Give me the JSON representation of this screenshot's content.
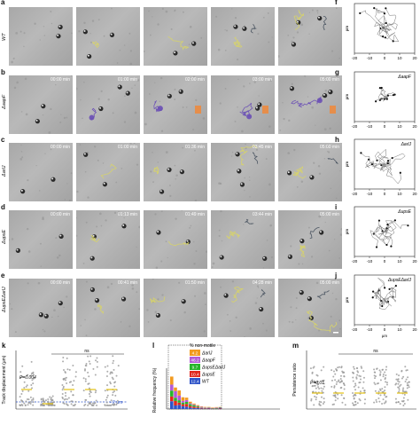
{
  "rows": [
    {
      "letter": "a",
      "plot_letter": "f",
      "label": "WT",
      "times": [
        "",
        "",
        "",
        "",
        ""
      ],
      "plot_title": "",
      "track_color": "#d7d36a"
    },
    {
      "letter": "b",
      "plot_letter": "g",
      "label": "ΔaapF",
      "times": [
        "00:00 min",
        "01:00 min",
        "02:00 min",
        "03:00 min",
        "05:00 min"
      ],
      "plot_title": "ΔaapF",
      "track_color": "#6a4fb5"
    },
    {
      "letter": "c",
      "plot_letter": "h",
      "label": "ΔarlJ",
      "times": [
        "00:00 min",
        "01:00 min",
        "01:36 min",
        "03:45 min",
        "05:00 min"
      ],
      "plot_title": "ΔarlJ",
      "track_color": "#d7d36a"
    },
    {
      "letter": "d",
      "plot_letter": "i",
      "label": "ΔupsE",
      "times": [
        "00:00 min",
        "01:13 min",
        "01:49 min",
        "03:44 min",
        "05:00 min"
      ],
      "plot_title": "ΔupsE",
      "track_color": "#d7d36a"
    },
    {
      "letter": "e",
      "plot_letter": "j",
      "label": "ΔupsEΔarlJ",
      "times": [
        "00:00 min",
        "00:41 min",
        "01:50 min",
        "04:28 min",
        "05:00 min"
      ],
      "plot_title": "ΔupsEΔarlJ",
      "track_color": "#d7d36a"
    }
  ],
  "track_axis": {
    "ylabel": "µm",
    "xlabel": "µm",
    "ticks": [
      "-20",
      "-10",
      "0",
      "10",
      "20"
    ]
  },
  "chart_k": {
    "letter": "k",
    "ylabel": "Track displacement (µm)",
    "ns_label": "ns",
    "p_label": "P=0.004",
    "threshold_label": "2 µm"
  },
  "chart_l": {
    "letter": "l",
    "ylabel": "Relative frequency (%)",
    "legend_title": "% non-motile",
    "legend": [
      {
        "value": "4.2",
        "name": "ΔarlJ",
        "color": "#f29a1f"
      },
      {
        "value": "46.2",
        "name": "ΔaapF",
        "color": "#b35bd6"
      },
      {
        "value": "9.7",
        "name": "ΔupsEΔarlJ",
        "color": "#27b52a"
      },
      {
        "value": "10.4",
        "name": "ΔupsE",
        "color": "#e0281e"
      },
      {
        "value": "12.4",
        "name": "WT",
        "color": "#2f54c8"
      }
    ]
  },
  "chart_m": {
    "letter": "m",
    "ylabel": "Persistence ratio",
    "ns_label": "ns",
    "p_label": "P=0.01"
  }
}
